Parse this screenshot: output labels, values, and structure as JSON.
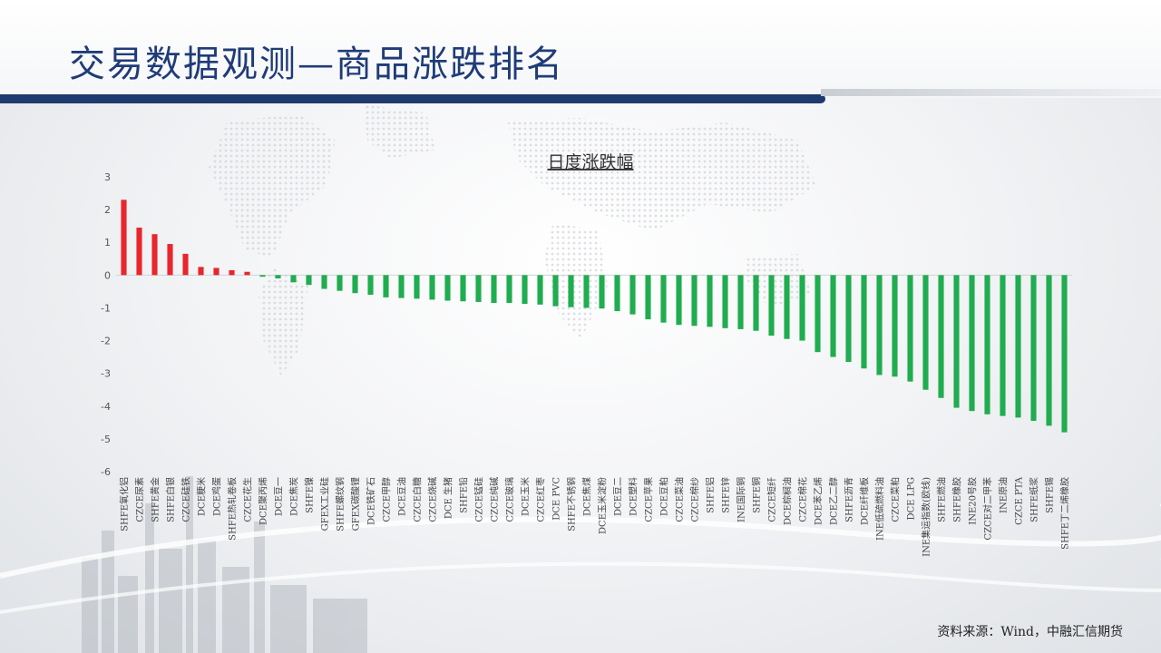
{
  "header": {
    "title": "交易数据观测—商品涨跌排名"
  },
  "footer": {
    "source": "资料来源：Wind，中融汇信期货"
  },
  "colors": {
    "up": "#e8262c",
    "down": "#1fad4f",
    "title": "#1f3c78",
    "rule": "#1f3a6e"
  },
  "chart_data": {
    "type": "bar",
    "title": "日度涨跌幅",
    "xlabel": "",
    "ylabel": "",
    "ylim": [
      -6,
      3
    ],
    "yticks": [
      3,
      2,
      1,
      0,
      -1,
      -2,
      -3,
      -4,
      -5,
      -6
    ],
    "grid": false,
    "categories": [
      "SHFE氧化铝",
      "CZCE尿素",
      "SHFE黄金",
      "SHFE白银",
      "CZCE硅铁",
      "DCE粳米",
      "DCE鸡蛋",
      "SHFE热轧卷板",
      "CZCE花生",
      "DCE聚丙烯",
      "DCE豆一",
      "DCE焦炭",
      "SHFE镍",
      "GFEX工业硅",
      "SHFE螺纹钢",
      "GFEX碳酸锂",
      "DCE铁矿石",
      "CZCE甲醇",
      "DCE豆油",
      "CZCE白糖",
      "CZCE烧碱",
      "DCE 生猪",
      "SHFE铅",
      "CZCE锰硅",
      "CZCE纯碱",
      "CZCE玻璃",
      "DCE玉米",
      "CZCE红枣",
      "DCE PVC",
      "SHFE不锈钢",
      "DCE焦煤",
      "DCE玉米淀粉",
      "DCE豆二",
      "DCE塑料",
      "CZCE苹果",
      "DCE豆粕",
      "CZCE菜油",
      "CZCE棉纱",
      "SHFE铝",
      "SHFE锌",
      "INE国际铜",
      "SHFE铜",
      "CZCE短纤",
      "DCE棕榈油",
      "CZCE棉花",
      "DCE苯乙烯",
      "DCE乙二醇",
      "SHFE沥青",
      "DCE纤维板",
      "INE低硫燃料油",
      "CZCE菜粕",
      "DCE LPG",
      "INE集运指数(欧线)",
      "SHFE燃油",
      "SHFE橡胶",
      "INE20号胶",
      "CZCE对二甲苯",
      "INE原油",
      "CZCE PTA",
      "SHFE纸浆",
      "SHFE锡",
      "SHFE丁二烯橡胶"
    ],
    "values": [
      2.3,
      1.45,
      1.25,
      0.95,
      0.65,
      0.25,
      0.22,
      0.15,
      0.1,
      -0.05,
      -0.1,
      -0.22,
      -0.3,
      -0.42,
      -0.48,
      -0.55,
      -0.6,
      -0.68,
      -0.7,
      -0.72,
      -0.75,
      -0.78,
      -0.8,
      -0.82,
      -0.85,
      -0.85,
      -0.88,
      -0.9,
      -0.95,
      -0.98,
      -1.0,
      -1.02,
      -1.1,
      -1.2,
      -1.35,
      -1.45,
      -1.52,
      -1.55,
      -1.58,
      -1.62,
      -1.65,
      -1.7,
      -1.85,
      -1.95,
      -2.0,
      -2.35,
      -2.5,
      -2.65,
      -2.85,
      -3.05,
      -3.1,
      -3.25,
      -3.5,
      -3.75,
      -4.05,
      -4.15,
      -4.25,
      -4.3,
      -4.35,
      -4.45,
      -4.6,
      -4.8
    ]
  }
}
